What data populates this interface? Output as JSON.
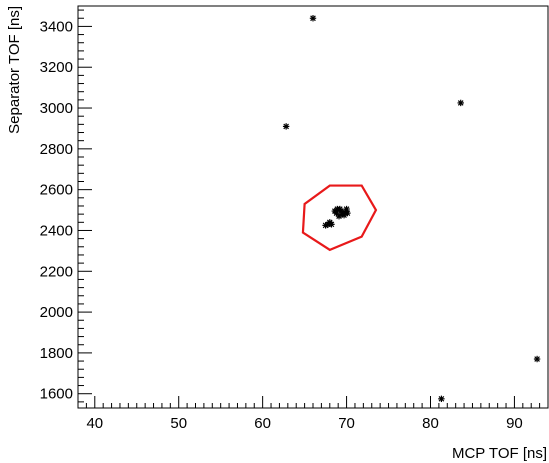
{
  "chart_data": {
    "type": "scatter",
    "xlabel": "MCP TOF [ns]",
    "ylabel": "Separator TOF [ns]",
    "xlim": [
      38,
      94
    ],
    "ylim": [
      1530,
      3500
    ],
    "x_ticks": [
      40,
      50,
      60,
      70,
      80,
      90
    ],
    "y_ticks": [
      1600,
      1800,
      2000,
      2200,
      2400,
      2600,
      2800,
      3000,
      3200,
      3400
    ],
    "x_minor_step": 1,
    "y_minor_step": 40,
    "grid": false,
    "colors": {
      "points": "#000000",
      "cut": "#e8191a"
    },
    "points": [
      {
        "x": 66.0,
        "y": 3440
      },
      {
        "x": 62.8,
        "y": 2910
      },
      {
        "x": 83.6,
        "y": 3025
      },
      {
        "x": 92.7,
        "y": 1770
      },
      {
        "x": 81.3,
        "y": 1575
      },
      {
        "x": 67.5,
        "y": 2425
      },
      {
        "x": 67.8,
        "y": 2430
      },
      {
        "x": 68.0,
        "y": 2440
      },
      {
        "x": 68.2,
        "y": 2430
      },
      {
        "x": 68.9,
        "y": 2505
      },
      {
        "x": 68.8,
        "y": 2485
      },
      {
        "x": 69.1,
        "y": 2470
      },
      {
        "x": 69.3,
        "y": 2495
      },
      {
        "x": 69.5,
        "y": 2480
      },
      {
        "x": 69.2,
        "y": 2505
      },
      {
        "x": 69.8,
        "y": 2490
      },
      {
        "x": 70.0,
        "y": 2505
      },
      {
        "x": 69.7,
        "y": 2475
      },
      {
        "x": 68.6,
        "y": 2495
      },
      {
        "x": 70.1,
        "y": 2485
      }
    ],
    "cut_polygon": [
      {
        "x": 68.0,
        "y": 2620
      },
      {
        "x": 71.8,
        "y": 2620
      },
      {
        "x": 73.5,
        "y": 2500
      },
      {
        "x": 71.8,
        "y": 2370
      },
      {
        "x": 68.0,
        "y": 2305
      },
      {
        "x": 64.8,
        "y": 2390
      },
      {
        "x": 65.0,
        "y": 2530
      }
    ]
  }
}
